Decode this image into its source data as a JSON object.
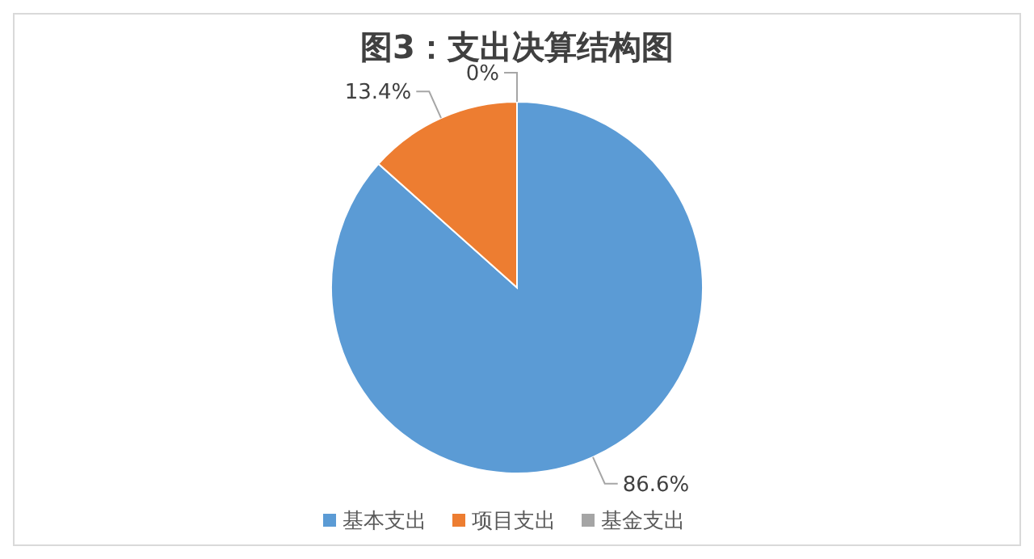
{
  "chart_data": {
    "type": "pie",
    "title": "图3：支出决算结构图",
    "categories": [
      "基本支出",
      "项目支出",
      "基金支出"
    ],
    "values": [
      86.6,
      13.4,
      0
    ],
    "colors": [
      "#5b9bd5",
      "#ed7d31",
      "#a5a5a5"
    ],
    "value_labels": [
      "86.6%",
      "13.4%",
      "0%"
    ],
    "legend": "bottom"
  }
}
